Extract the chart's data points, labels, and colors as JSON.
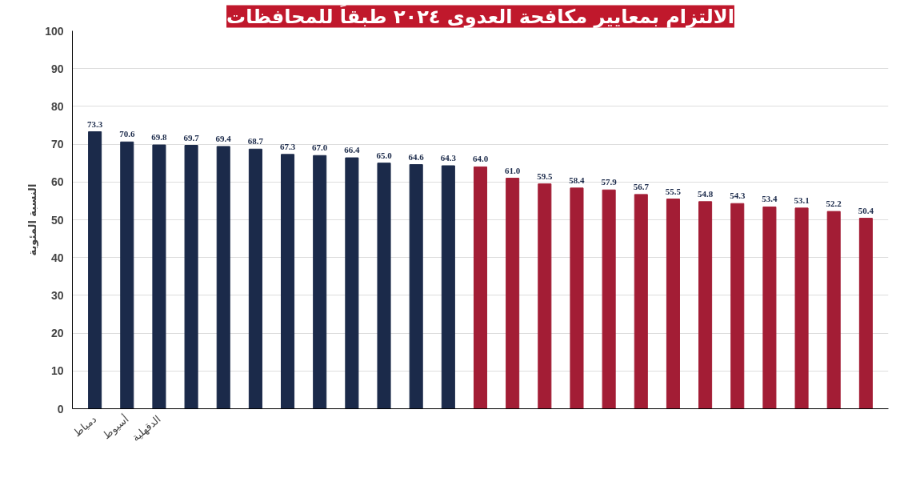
{
  "chart_data": {
    "type": "bar",
    "title": "الالتزام بمعايير مكافحة العدوى ٢٠٢٤ طبقاً للمحافظات",
    "ylabel": "النسبة المئوية",
    "categories": [
      "دمياط",
      "أسيوط",
      "الدقهلية",
      null,
      null,
      null,
      null,
      null,
      null,
      null,
      null,
      null,
      null,
      null,
      null,
      null,
      null,
      null,
      null,
      null,
      null,
      null,
      null,
      null,
      null
    ],
    "values": [
      73.3,
      70.6,
      69.8,
      69.7,
      69.4,
      68.7,
      67.3,
      67.0,
      66.4,
      65.0,
      64.6,
      64.3,
      64.0,
      61.0,
      59.5,
      58.4,
      57.9,
      56.7,
      55.5,
      54.8,
      54.3,
      53.4,
      53.1,
      52.2,
      50.4
    ],
    "colors": [
      "#1b2a4a",
      "#1b2a4a",
      "#1b2a4a",
      "#1b2a4a",
      "#1b2a4a",
      "#1b2a4a",
      "#1b2a4a",
      "#1b2a4a",
      "#1b2a4a",
      "#1b2a4a",
      "#1b2a4a",
      "#1b2a4a",
      "#a31d35",
      "#a31d35",
      "#a31d35",
      "#a31d35",
      "#a31d35",
      "#a31d35",
      "#a31d35",
      "#a31d35",
      "#a31d35",
      "#a31d35",
      "#a31d35",
      "#a31d35",
      "#a31d35"
    ],
    "value_labels": [
      "73.3",
      "70.6",
      "69.8",
      "69.7",
      "69.4",
      "68.7",
      "67.3",
      "67.0",
      "66.4",
      "65.0",
      "64.6",
      "64.3",
      "64.0",
      "61.0",
      "59.5",
      "58.4",
      "57.9",
      "56.7",
      "55.5",
      "54.8",
      "54.3",
      "53.4",
      "53.1",
      "52.2",
      "50.4"
    ],
    "ylim": [
      0,
      100
    ],
    "yticks": [
      0,
      10,
      20,
      30,
      40,
      50,
      60,
      70,
      80,
      90,
      100
    ],
    "grid": "y"
  }
}
